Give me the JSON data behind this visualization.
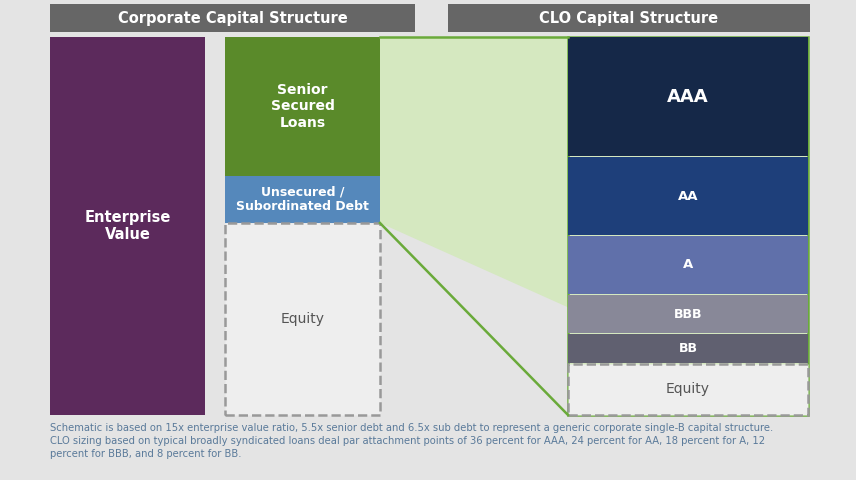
{
  "title_left": "Corporate Capital Structure",
  "title_right": "CLO Capital Structure",
  "title_bg": "#666666",
  "title_text_color": "#ffffff",
  "bg_color": "#e4e4e4",
  "footnote_line1": "Schematic is based on 15x enterprise value ratio, 5.5x senior debt and 6.5x sub debt to represent a generic corporate single-B capital structure.",
  "footnote_line2": "CLO sizing based on typical broadly syndicated loans deal par attachment points of 36 percent for AAA, 24 percent for AA, 18 percent for A, 12",
  "footnote_line3": "percent for BBB, and 8 percent for BB.",
  "footnote_color": "#5a7a9a",
  "enterprise_value_color": "#5c2a5c",
  "enterprise_value_label": "Enterprise\nValue",
  "senior_secured_color": "#5a8a2a",
  "senior_secured_label": "Senior\nSecured\nLoans",
  "unsecured_color": "#5588bb",
  "unsecured_label": "Unsecured /\nSubordinated Debt",
  "equity_corp_label": "Equity",
  "equity_corp_bg": "#eeeeee",
  "equity_dashed_color": "#999999",
  "shaded_region_color": "#d5e8c0",
  "aaa_color": "#152848",
  "aaa_label": "AAA",
  "aa_color": "#1e3f7a",
  "aa_label": "AA",
  "a_color": "#6070aa",
  "a_label": "A",
  "bbb_color": "#888898",
  "bbb_label": "BBB",
  "bb_color": "#606070",
  "bb_label": "BB",
  "equity_clo_label": "Equity",
  "equity_clo_bg": "#eeeeee",
  "clo_border_color": "#6aaa3a",
  "white": "#ffffff",
  "dark_text": "#555555"
}
